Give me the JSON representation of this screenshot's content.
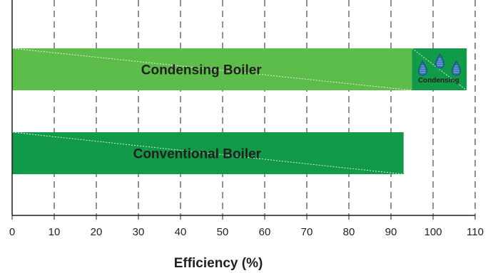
{
  "chart_data": {
    "type": "bar",
    "orientation": "horizontal",
    "xlabel": "Efficiency (%)",
    "xlim": [
      0,
      110
    ],
    "x_ticks": [
      0,
      10,
      20,
      30,
      40,
      50,
      60,
      70,
      80,
      90,
      100,
      110
    ],
    "grid": "vertical dashed",
    "bars": [
      {
        "label": "Condensing Boiler",
        "value": 95,
        "color": "#5cbd4a",
        "extension": {
          "label": "Condensing",
          "from": 95,
          "to": 108,
          "color": "#119a47",
          "icon": "water-drop-icon"
        }
      },
      {
        "label": "Conventional Boiler",
        "value": 93,
        "color": "#119a47"
      }
    ]
  }
}
